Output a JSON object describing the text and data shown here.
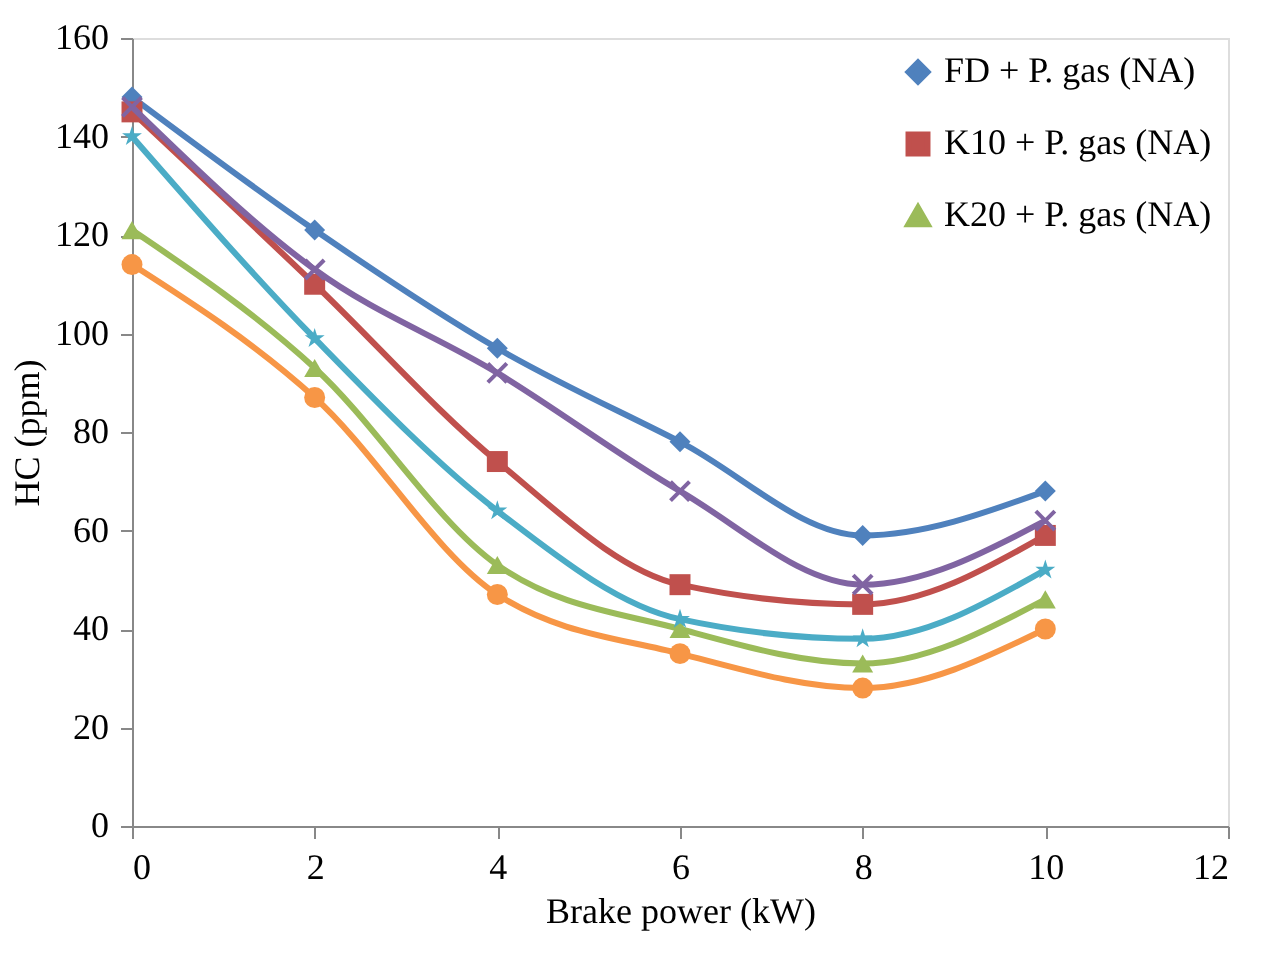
{
  "chart_data": {
    "type": "line",
    "xlabel": "Brake power (kW)",
    "ylabel": "HC (ppm)",
    "x": [
      0,
      2,
      4,
      6,
      8,
      10
    ],
    "xlim": [
      0,
      12
    ],
    "xticks": [
      0,
      2,
      4,
      6,
      8,
      10,
      12
    ],
    "ylim": [
      0,
      160
    ],
    "yticks": [
      0,
      20,
      40,
      60,
      80,
      100,
      120,
      140,
      160
    ],
    "grid": false,
    "legend": "top right",
    "line_style": "solid",
    "series": [
      {
        "name": "FD + P. gas (NA)",
        "color": "#4f81bd",
        "marker": "diamond",
        "values": [
          148,
          121,
          97,
          78,
          59,
          68
        ]
      },
      {
        "name": "K10 + P. gas (NA)",
        "color": "#c0504d",
        "marker": "square",
        "values": [
          145,
          110,
          74,
          49,
          45,
          59
        ]
      },
      {
        "name": "K20 + P. gas (NA)",
        "color": "#9bbb59",
        "marker": "triangle",
        "values": [
          121,
          93,
          53,
          40,
          33,
          46
        ]
      },
      {
        "color": "#8064a2",
        "marker": "cross",
        "values": [
          146,
          113,
          92,
          68,
          49,
          62
        ]
      },
      {
        "color": "#4bacc6",
        "marker": "star",
        "values": [
          140,
          99,
          64,
          42,
          38,
          52
        ]
      },
      {
        "color": "#f79646",
        "marker": "circle",
        "values": [
          114,
          87,
          47,
          35,
          28,
          40
        ]
      }
    ]
  }
}
